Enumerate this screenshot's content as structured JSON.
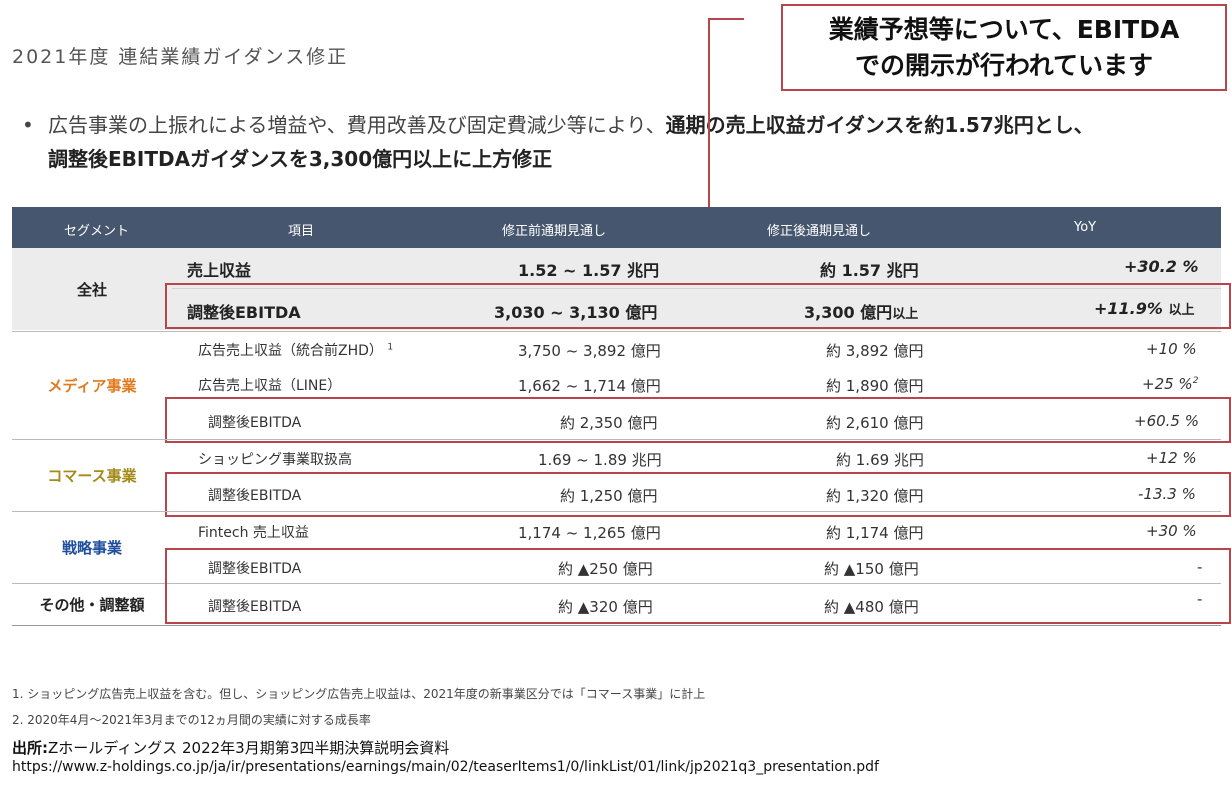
{
  "title": "2021年度 連結業績ガイダンス修正",
  "bullet": {
    "symbol": "•",
    "normal": "広告事業の上振れによる増益や、費用改善及び固定費減少等により、",
    "bold1": "通期の売上収益ガイダンスを約1.57兆円とし、",
    "bold2": "調整後EBITDAガイダンスを3,300億円以上に上方修正"
  },
  "callout": {
    "line1": "業績予想等について、EBITDA",
    "line2": "での開示が行われています"
  },
  "table": {
    "headers": [
      "セグメント",
      "項目",
      "修正前通期見通し",
      "修正後通期見通し",
      "YoY"
    ],
    "segments": {
      "zensha": "全社",
      "media": "メディア事業",
      "commerce": "コマース事業",
      "strategy": "戦略事業",
      "other": "その他・調整額"
    },
    "rows": [
      {
        "item": "売上収益",
        "before": "1.52 ~ 1.57 兆円",
        "after": "約 1.57 兆円",
        "yoy": "+30.2 %"
      },
      {
        "item": "調整後EBITDA",
        "before": "3,030 ~ 3,130 億円",
        "after": "3,300 億円",
        "after_suffix": "以上",
        "yoy": "+11.9%",
        "yoy_suffix": "以上"
      },
      {
        "item": "広告売上収益（統合前ZHD）",
        "item_sup": "1",
        "before": "3,750 ~ 3,892 億円",
        "after": "約 3,892 億円",
        "yoy": "+10 %"
      },
      {
        "item": "広告売上収益（LINE）",
        "before": "1,662 ~ 1,714 億円",
        "after": "約 1,890 億円",
        "yoy": "+25 %",
        "yoy_sup": "2"
      },
      {
        "item": "調整後EBITDA",
        "before": "約 2,350 億円",
        "after": "約 2,610 億円",
        "yoy": "+60.5 %"
      },
      {
        "item": "ショッピング事業取扱高",
        "before": "1.69 ~ 1.89 兆円",
        "after": "約 1.69 兆円",
        "yoy": "+12 %"
      },
      {
        "item": "調整後EBITDA",
        "before": "約 1,250 億円",
        "after": "約 1,320 億円",
        "yoy": "-13.3 %"
      },
      {
        "item": "Fintech 売上収益",
        "before": "1,174 ~ 1,265 億円",
        "after": "約 1,174 億円",
        "yoy": "+30 %"
      },
      {
        "item": "調整後EBITDA",
        "before": "約 ▲250 億円",
        "after": "約 ▲150 億円",
        "yoy": "-"
      },
      {
        "item": "調整後EBITDA",
        "before": "約 ▲320 億円",
        "after": "約 ▲480 億円",
        "yoy": "-"
      }
    ]
  },
  "footnotes": [
    "1. ショッピング広告売上収益を含む。但し、ショッピング広告売上収益は、2021年度の新事業区分では「コマース事業」に計上",
    "2. 2020年4月～2021年3月までの12ヵ月間の実績に対する成長率"
  ],
  "source": {
    "label": "出所:",
    "text": "Zホールディングス 2022年3月期第3四半期決算説明会資料",
    "url": "https://www.z-holdings.co.jp/ja/ir/presentations/earnings/main/02/teaserItems1/0/linkList/01/link/jp2021q3_presentation.pdf"
  },
  "colors": {
    "header_bg": "#46566f",
    "highlight": "#b5474c",
    "media": "#e07a1f",
    "commerce": "#a58a1a",
    "strategy": "#1f4e9c",
    "zensha_bg": "#ececec"
  }
}
